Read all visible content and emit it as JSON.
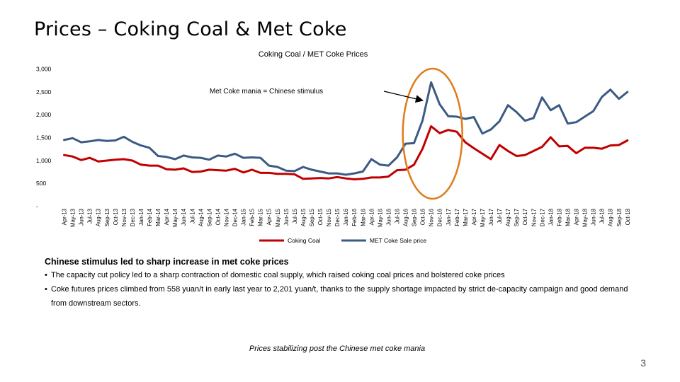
{
  "slide": {
    "title": "Prices – Coking Coal & Met Coke",
    "page_number": "3"
  },
  "chart_data": {
    "type": "line",
    "title": "Coking Coal / MET Coke Prices",
    "annotation": "Met Coke mania = Chinese stimulus",
    "y_ticks": [
      "-",
      "500",
      "1,000",
      "1,500",
      "2,000",
      "2,500",
      "3,000"
    ],
    "ylim": [
      0,
      3000
    ],
    "grid": false,
    "legend_position": "bottom-center",
    "categories": [
      "Apr-13",
      "May-13",
      "Jun-13",
      "Jul-13",
      "Aug-13",
      "Sep-13",
      "Oct-13",
      "Nov-13",
      "Dec-13",
      "Jan-14",
      "Feb-14",
      "Mar-14",
      "Apr-14",
      "May-14",
      "Jun-14",
      "Jul-14",
      "Aug-14",
      "Sep-14",
      "Oct-14",
      "Nov-14",
      "Dec-14",
      "Jan-15",
      "Feb-15",
      "Mar-15",
      "Apr-15",
      "May-15",
      "Jun-15",
      "Jul-15",
      "Aug-15",
      "Sep-15",
      "Oct-15",
      "Nov-15",
      "Dec-15",
      "Jan-16",
      "Feb-16",
      "Mar-16",
      "Apr-16",
      "May-16",
      "Jun-16",
      "Jul-16",
      "Aug-16",
      "Sep-16",
      "Oct-16",
      "Nov-16",
      "Dec-16",
      "Jan-17",
      "Feb-17",
      "Mar-17",
      "Apr-17",
      "May-17",
      "Jun-17",
      "Jul-17",
      "Aug-17",
      "Sep-17",
      "Oct-17",
      "Nov-17",
      "Dec-17",
      "Jan-18",
      "Feb-18",
      "Mar-18",
      "Apr-18",
      "May-18",
      "Jun-18",
      "Jul-18",
      "Aug-18",
      "Sep-18",
      "Oct-18"
    ],
    "series": [
      {
        "name": "Coking Coal",
        "color": "#c00000",
        "values": [
          1110,
          1080,
          1000,
          1050,
          970,
          990,
          1010,
          1020,
          990,
          900,
          880,
          880,
          800,
          790,
          820,
          740,
          750,
          790,
          780,
          770,
          810,
          730,
          790,
          720,
          720,
          700,
          700,
          690,
          590,
          600,
          610,
          600,
          630,
          600,
          580,
          590,
          620,
          620,
          640,
          780,
          790,
          900,
          1250,
          1740,
          1590,
          1660,
          1620,
          1390,
          1260,
          1140,
          1020,
          1330,
          1200,
          1090,
          1110,
          1200,
          1290,
          1500,
          1300,
          1310,
          1150,
          1270,
          1270,
          1250,
          1320,
          1330,
          1430
        ]
      },
      {
        "name": "MET Coke Sale price",
        "color": "#3b5a84",
        "values": [
          1440,
          1480,
          1390,
          1410,
          1440,
          1420,
          1430,
          1510,
          1400,
          1320,
          1270,
          1090,
          1070,
          1020,
          1100,
          1060,
          1050,
          1010,
          1100,
          1080,
          1140,
          1050,
          1060,
          1050,
          880,
          850,
          770,
          760,
          850,
          790,
          750,
          710,
          710,
          680,
          710,
          750,
          1020,
          900,
          880,
          1060,
          1360,
          1370,
          1870,
          2700,
          2220,
          1960,
          1950,
          1900,
          1940,
          1580,
          1670,
          1850,
          2200,
          2050,
          1860,
          1920,
          2370,
          2090,
          2200,
          1800,
          1830,
          1950,
          2070,
          2380,
          2540,
          2340,
          2490
        ]
      }
    ]
  },
  "body": {
    "subheading": "Chinese stimulus led to sharp increase in met coke prices",
    "bullets": [
      "The capacity cut policy led to a sharp contraction of domestic coal supply, which raised coking coal prices and bolstered coke prices",
      "Coke futures prices climbed from 558 yuan/t in early last year to 2,201 yuan/t, thanks to the supply shortage impacted by strict de-capacity campaign and good demand from downstream sectors."
    ],
    "bullet_glyph": "•",
    "caption": "Prices stabilizing post the Chinese met coke mania"
  },
  "highlight": {
    "ellipse_color": "#e07b1a",
    "arrow_color": "#000000"
  }
}
